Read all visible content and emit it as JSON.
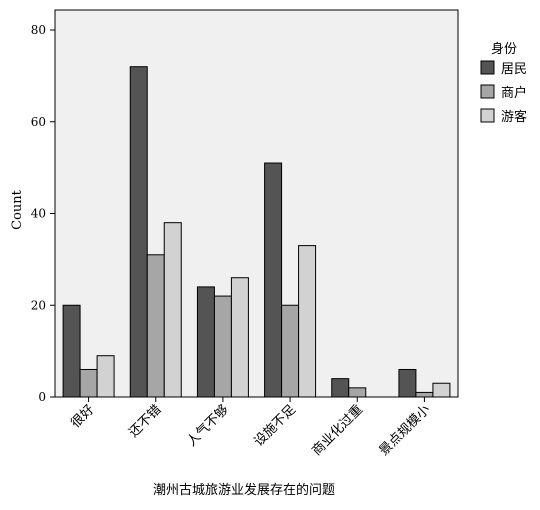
{
  "chart_data": {
    "type": "bar",
    "title": "",
    "xlabel": "潮州古城旅游业发展存在的问题",
    "ylabel": "Count",
    "ylim": [
      0,
      80
    ],
    "yticks": [
      0,
      20,
      40,
      60,
      80
    ],
    "grid": false,
    "legend_title": "身份",
    "legend_position": "right",
    "categories": [
      "很好",
      "还不错",
      "人气不够",
      "设施不足",
      "商业化过重",
      "景点规模小"
    ],
    "series": [
      {
        "name": "居民",
        "color": "#545454",
        "values": [
          20,
          72,
          24,
          51,
          4,
          6
        ]
      },
      {
        "name": "商户",
        "color": "#a6a6a6",
        "values": [
          6,
          31,
          22,
          20,
          2,
          1
        ]
      },
      {
        "name": "游客",
        "color": "#d2d2d2",
        "values": [
          9,
          38,
          26,
          33,
          0,
          3
        ]
      }
    ]
  }
}
